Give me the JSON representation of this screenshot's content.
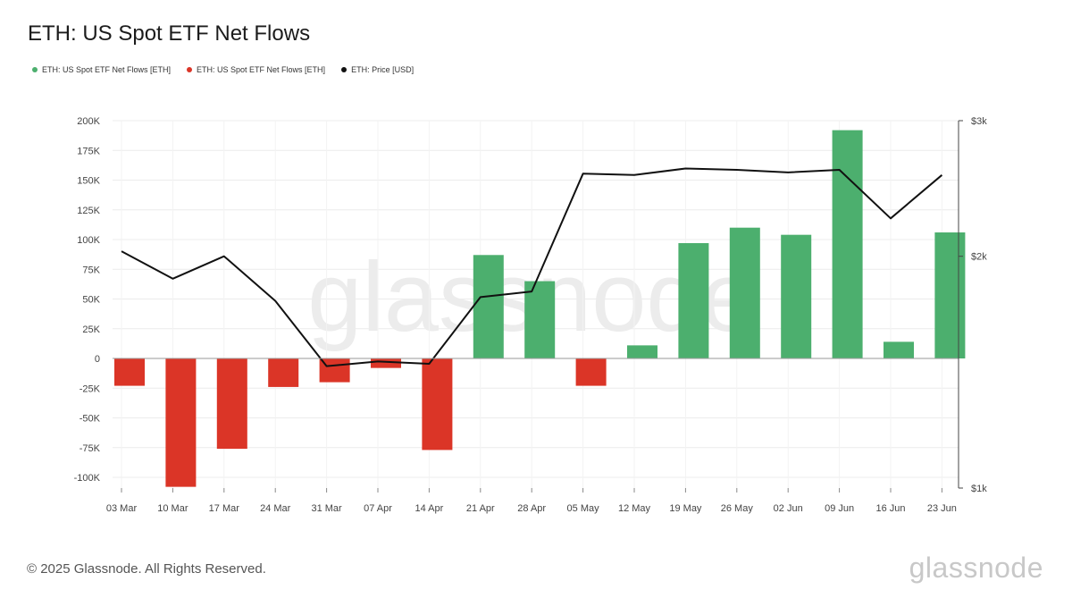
{
  "title": "ETH: US Spot ETF Net Flows",
  "legend": [
    {
      "label": "ETH: US Spot ETF Net Flows [ETH]",
      "color": "#4caf6e"
    },
    {
      "label": "ETH: US Spot ETF Net Flows [ETH]",
      "color": "#db3527"
    },
    {
      "label": "ETH: Price [USD]",
      "color": "#111111"
    }
  ],
  "footer": "© 2025 Glassnode. All Rights Reserved.",
  "brand": "glassnode",
  "watermark": "glassnode",
  "colors": {
    "positive": "#4caf6e",
    "negative": "#db3527",
    "price": "#111111",
    "grid": "#ececec"
  },
  "chart_data": {
    "type": "bar",
    "title": "ETH: US Spot ETF Net Flows",
    "categories": [
      "03 Mar",
      "10 Mar",
      "17 Mar",
      "24 Mar",
      "31 Mar",
      "07 Apr",
      "14 Apr",
      "21 Apr",
      "28 Apr",
      "05 May",
      "12 May",
      "19 May",
      "26 May",
      "02 Jun",
      "09 Jun",
      "16 Jun",
      "23 Jun"
    ],
    "series": [
      {
        "name": "ETH: US Spot ETF Net Flows [ETH]",
        "type": "bar",
        "axis": "left",
        "values": [
          -23000,
          -108000,
          -76000,
          -24000,
          -20000,
          -8000,
          -77000,
          87000,
          65000,
          -23000,
          11000,
          97000,
          110000,
          104000,
          192000,
          14000,
          106000
        ]
      },
      {
        "name": "ETH: Price [USD]",
        "type": "line",
        "axis": "right",
        "values": [
          2030,
          1870,
          2000,
          1750,
          1440,
          1460,
          1450,
          1770,
          1800,
          2560,
          2550,
          2600,
          2590,
          2570,
          2590,
          2240,
          2550
        ]
      }
    ],
    "y_left": {
      "ticks": [
        "200K",
        "175K",
        "150K",
        "125K",
        "100K",
        "75K",
        "50K",
        "25K",
        "0",
        "-25K",
        "-50K",
        "-75K",
        "-100K"
      ],
      "ylim": [
        -110000,
        200000
      ]
    },
    "y_right": {
      "ticks": [
        "$3k",
        "$2k",
        "$1k"
      ],
      "scale": "log",
      "ylim": [
        1000,
        3000
      ]
    },
    "grid": true,
    "legend_position": "top-left"
  }
}
